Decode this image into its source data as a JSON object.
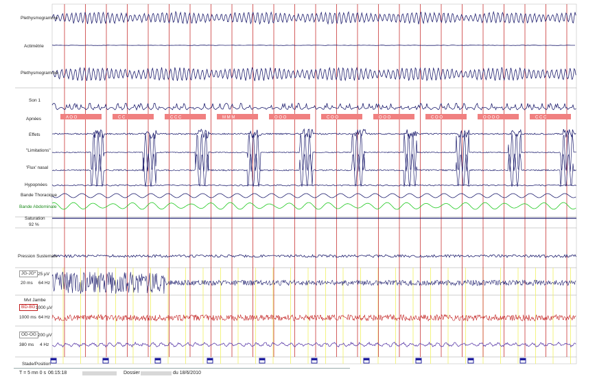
{
  "channels": [
    {
      "name": "Plethysmogramme",
      "color": "#1e1e6e"
    },
    {
      "name": "Actimétrie",
      "color": "#1e1e6e"
    },
    {
      "name": "Plethysmogramme",
      "color": "#1e1e6e"
    },
    {
      "name": "Son 1",
      "color": "#1e1e6e"
    },
    {
      "name": "Apnées",
      "color": "#1e1e6e"
    },
    {
      "name": "Effets",
      "color": "#1e1e6e"
    },
    {
      "name": "\"Limitations\"",
      "color": "#1e1e6e"
    },
    {
      "name": "'Flux' nasal",
      "color": "#1e1e6e"
    },
    {
      "name": "Hypopnées",
      "color": "#1e1e6e"
    },
    {
      "name": "Bande Thoracique",
      "color": "#1e1e6e"
    },
    {
      "name": "Bande Abdominale",
      "color": "#1ec81e"
    },
    {
      "name": "Saturation",
      "color": "#1e1e6e"
    },
    {
      "name": "Pression Sustemale",
      "color": "#1e1e6e"
    },
    {
      "name": "Mvt Jambe",
      "color": "#c01818"
    },
    {
      "name": "Stade/Position",
      "color": "#1e1e6e"
    }
  ],
  "channel_settings": {
    "saturation_value": "92 %",
    "emg": {
      "name": "JG-JG*",
      "amp": "25 µV",
      "time": "20 ms",
      "freq": "64 Hz"
    },
    "leg": {
      "name": "BD-BG",
      "amp": "1000 µV",
      "time": "1000 ms",
      "freq": "64 Hz"
    },
    "eog": {
      "name": "OD-OG",
      "amp": "200 µV",
      "time": "380 ms",
      "freq": "4 Hz"
    }
  },
  "status": {
    "window": "T = 5 mn 0 s",
    "time": "06:15:18",
    "dossier_label": "Dossier :",
    "date": "du 18/6/2010"
  },
  "apnea_event_labels": [
    "A O O",
    "C C",
    "C C C",
    "M M M",
    "O O O",
    "C O O",
    "O O O",
    "C O O",
    "O O O O",
    "C C C"
  ],
  "colors": {
    "trace": "#1e1e6e",
    "marker": "#c01818",
    "epoch": "#f0f060",
    "event": "#f08080",
    "abdominal": "#1ec81e",
    "leg": "#c01818"
  }
}
